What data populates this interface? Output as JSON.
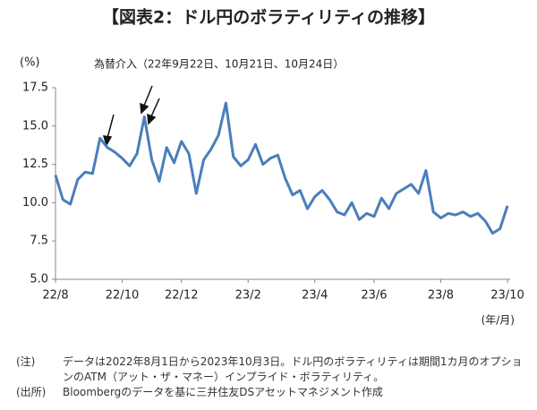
{
  "chart_data": {
    "type": "line",
    "title": "【図表2：ドル円のボラティリティの推移】",
    "y_unit": "(%)",
    "x_unit": "(年/月)",
    "annotation": "為替介入（22年9月22日、10月21日、10月24日）",
    "categories": [
      "22/8",
      null,
      null,
      null,
      null,
      null,
      null,
      null,
      null,
      "22/10",
      null,
      null,
      null,
      null,
      null,
      null,
      null,
      "22/12",
      null,
      null,
      null,
      null,
      null,
      null,
      null,
      null,
      "23/2",
      null,
      null,
      null,
      null,
      null,
      null,
      null,
      null,
      "23/4",
      null,
      null,
      null,
      null,
      null,
      null,
      null,
      "23/6",
      null,
      null,
      null,
      null,
      null,
      null,
      null,
      null,
      "23/8",
      null,
      null,
      null,
      null,
      null,
      null,
      null,
      null,
      "23/10"
    ],
    "values": [
      11.8,
      10.2,
      9.9,
      11.5,
      12.0,
      11.9,
      14.2,
      13.6,
      13.3,
      12.9,
      12.4,
      13.2,
      15.6,
      12.8,
      11.4,
      13.6,
      12.6,
      14.0,
      13.2,
      10.6,
      12.8,
      13.5,
      14.4,
      16.5,
      13.0,
      12.4,
      12.8,
      13.8,
      12.5,
      12.9,
      13.1,
      11.6,
      10.5,
      10.8,
      9.6,
      10.4,
      10.8,
      10.2,
      9.4,
      9.2,
      10.0,
      8.9,
      9.3,
      9.1,
      10.3,
      9.6,
      10.6,
      10.9,
      11.2,
      10.6,
      12.1,
      9.4,
      9.0,
      9.3,
      9.2,
      9.4,
      9.1,
      9.3,
      8.8,
      8.0,
      8.3,
      9.8
    ],
    "color": "#4a7ebb",
    "ylim": [
      5,
      17.5
    ],
    "yticks": [
      {
        "value": 5,
        "label": "5.0"
      },
      7.5,
      {
        "value": 10,
        "label": "10.0"
      },
      12.5,
      {
        "value": 15,
        "label": "15.0"
      },
      17.5
    ],
    "grid": false,
    "notes": [
      {
        "label": "(注)",
        "text": "データは2022年8月1日から2023年10月3日。ドル円のボラティリティは期間1カ月のオプションのATM（アット・ザ・マネー）インプライド・ボラティリティ。"
      },
      {
        "label": "(出所)",
        "text": "Bloombergのデータを基に三井住友DSアセットマネジメント作成"
      }
    ]
  }
}
